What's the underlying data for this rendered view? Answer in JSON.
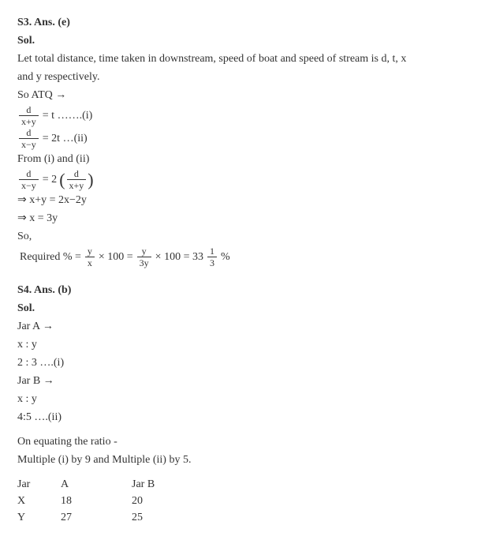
{
  "s3": {
    "header": "S3. Ans. (e)",
    "sol": "Sol.",
    "intro1": "Let total distance, time taken in downstream, speed of boat and speed of stream is d, t, x",
    "intro2": "and y respectively.",
    "atq": "So ATQ →",
    "eq1_frac_num": "d",
    "eq1_frac_den": "x+y",
    "eq1_rhs": " = t …….(i)",
    "eq2_frac_num": "d",
    "eq2_frac_den": "x−y",
    "eq2_rhs": " = 2t …(ii)",
    "from": "From (i) and (ii)",
    "eq3_l_num": "d",
    "eq3_l_den": "x−y",
    "eq3_mid": " = 2 ",
    "eq3_r_num": "d",
    "eq3_r_den": "x+y",
    "imp1": "⇒ x+y = 2x−2y",
    "imp2": "⇒ x = 3y",
    "so": "So,",
    "req_label": "Required % = ",
    "req_f1_num": "y",
    "req_f1_den": "x",
    "req_mid1": " × 100 = ",
    "req_f2_num": "y",
    "req_f2_den": "3y",
    "req_mid2": " × 100 = 33",
    "req_f3_num": "1",
    "req_f3_den": "3",
    "req_end": "%"
  },
  "s4": {
    "header": "S4. Ans. (b)",
    "sol": "Sol.",
    "jarA": "Jar A →",
    "xy1": "x : y",
    "ratio1": "2 : 3 ….(i)",
    "jarB": "Jar B →",
    "xy2": "x : y",
    "ratio2": "4:5 ….(ii)",
    "equate1": "On equating the ratio -",
    "equate2": "Multiple (i) by 9 and Multiple (ii) by 5.",
    "th1": "Jar",
    "th2": "A",
    "th3": "Jar B",
    "r1c1": "X",
    "r1c2": "18",
    "r1c3": "20",
    "r2c1": "Y",
    "r2c2": "27",
    "r2c3": "25"
  }
}
